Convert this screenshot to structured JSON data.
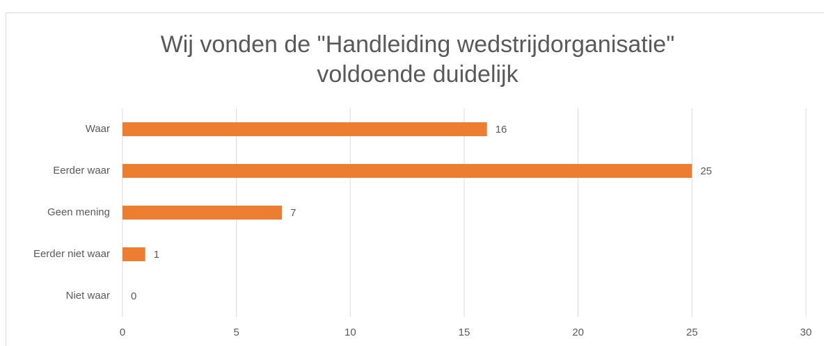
{
  "chart_data": {
    "type": "bar",
    "orientation": "horizontal",
    "title": [
      "Wij vonden de \"Handleiding wedstrijdorganisatie\"",
      "voldoende duidelijk"
    ],
    "categories": [
      "Waar",
      "Eerder waar",
      "Geen mening",
      "Eerder niet waar",
      "Niet waar"
    ],
    "values": [
      16,
      25,
      7,
      1,
      0
    ],
    "color": "#ed7d31",
    "xlim": [
      0,
      30
    ],
    "xticks": [
      0,
      5,
      10,
      15,
      20,
      25,
      30
    ],
    "grid": true
  }
}
